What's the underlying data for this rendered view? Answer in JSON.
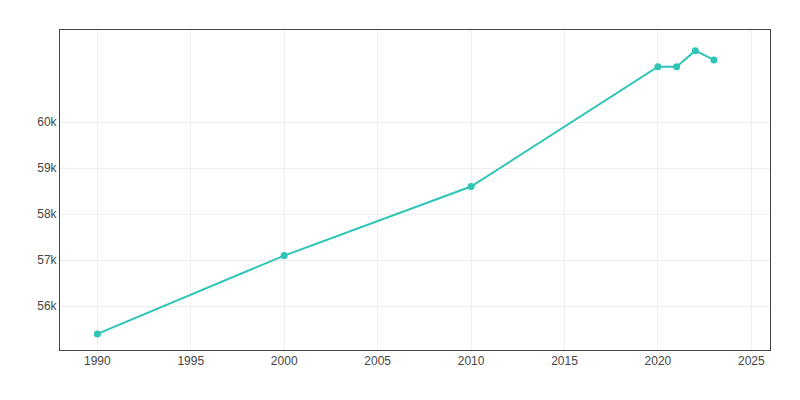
{
  "chart_data": {
    "type": "line",
    "x": [
      1990,
      2000,
      2010,
      2020,
      2021,
      2022,
      2023
    ],
    "values": [
      55400,
      57100,
      58600,
      61202,
      61200,
      61550,
      61350
    ],
    "color": "#2ec4b6",
    "marker": "circle",
    "xlim": [
      1988,
      2026
    ],
    "xticks": [
      1990,
      1995,
      2000,
      2005,
      2010,
      2015,
      2020,
      2025
    ],
    "ylim": [
      55050,
      62000
    ],
    "yticks": [
      {
        "value": 56000,
        "label": "56k"
      },
      {
        "value": 57000,
        "label": "57k"
      },
      {
        "value": 58000,
        "label": "58k"
      },
      {
        "value": 59000,
        "label": "59k"
      },
      {
        "value": 60000,
        "label": "60k"
      }
    ],
    "grid": true
  }
}
